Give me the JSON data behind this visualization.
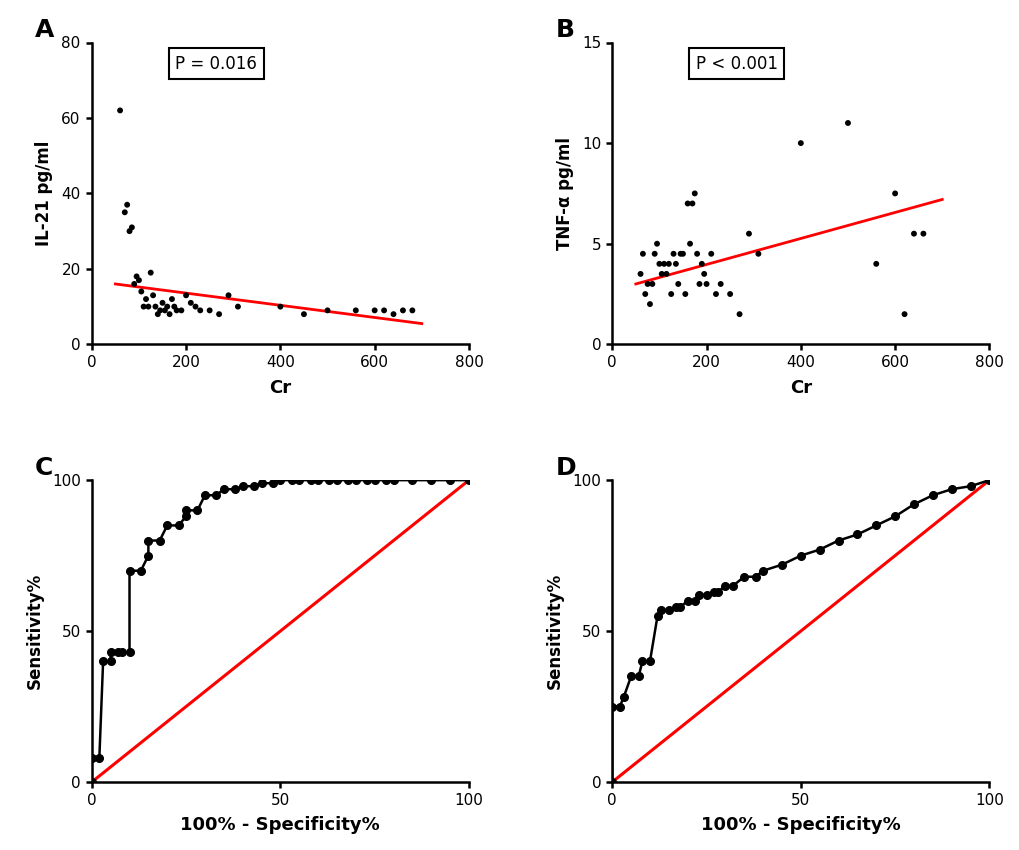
{
  "panel_A": {
    "scatter_x": [
      60,
      70,
      75,
      80,
      85,
      90,
      95,
      100,
      105,
      110,
      115,
      120,
      125,
      130,
      135,
      140,
      145,
      150,
      155,
      160,
      165,
      170,
      175,
      180,
      190,
      200,
      210,
      220,
      230,
      250,
      270,
      290,
      310,
      400,
      450,
      500,
      560,
      600,
      620,
      640,
      660,
      680
    ],
    "scatter_y": [
      62,
      35,
      37,
      30,
      31,
      16,
      18,
      17,
      14,
      10,
      12,
      10,
      19,
      13,
      10,
      8,
      9,
      11,
      9,
      10,
      8,
      12,
      10,
      9,
      9,
      13,
      11,
      10,
      9,
      9,
      8,
      13,
      10,
      10,
      8,
      9,
      9,
      9,
      9,
      8,
      9,
      9
    ],
    "trend_x": [
      50,
      700
    ],
    "trend_y": [
      16.0,
      5.5
    ],
    "xlabel": "Cr",
    "ylabel": "IL-21 pg/ml",
    "xlim": [
      0,
      800
    ],
    "ylim": [
      0,
      80
    ],
    "xticks": [
      0,
      200,
      400,
      600,
      800
    ],
    "yticks": [
      0,
      20,
      40,
      60,
      80
    ],
    "ptext": "P = 0.016",
    "label": "A"
  },
  "panel_B": {
    "scatter_x": [
      60,
      65,
      70,
      75,
      80,
      85,
      90,
      95,
      100,
      105,
      110,
      115,
      120,
      125,
      130,
      135,
      140,
      145,
      150,
      155,
      160,
      165,
      170,
      175,
      180,
      185,
      190,
      195,
      200,
      210,
      220,
      230,
      250,
      270,
      290,
      310,
      400,
      500,
      560,
      600,
      620,
      640,
      660
    ],
    "scatter_y": [
      3.5,
      4.5,
      2.5,
      3.0,
      2.0,
      3.0,
      4.5,
      5.0,
      4.0,
      3.5,
      4.0,
      3.5,
      4.0,
      2.5,
      4.5,
      4.0,
      3.0,
      4.5,
      4.5,
      2.5,
      7.0,
      5.0,
      7.0,
      7.5,
      4.5,
      3.0,
      4.0,
      3.5,
      3.0,
      4.5,
      2.5,
      3.0,
      2.5,
      1.5,
      5.5,
      4.5,
      10.0,
      11.0,
      4.0,
      7.5,
      1.5,
      5.5,
      5.5
    ],
    "trend_x": [
      50,
      700
    ],
    "trend_y": [
      3.0,
      7.2
    ],
    "xlabel": "Cr",
    "ylabel": "TNF-α pg/ml",
    "xlim": [
      0,
      800
    ],
    "ylim": [
      0,
      15
    ],
    "xticks": [
      0,
      200,
      400,
      600,
      800
    ],
    "yticks": [
      0,
      5,
      10,
      15
    ],
    "ptext": "P < 0.001",
    "label": "B"
  },
  "panel_C": {
    "fpr": [
      0,
      0,
      2,
      3,
      5,
      5,
      7,
      8,
      10,
      10,
      13,
      15,
      15,
      18,
      20,
      23,
      25,
      25,
      28,
      30,
      33,
      35,
      38,
      40,
      43,
      45,
      48,
      50,
      53,
      55,
      58,
      60,
      63,
      65,
      68,
      70,
      73,
      75,
      78,
      80,
      85,
      90,
      95,
      100
    ],
    "tpr": [
      0,
      8,
      8,
      40,
      40,
      43,
      43,
      43,
      43,
      70,
      70,
      75,
      80,
      80,
      85,
      85,
      88,
      90,
      90,
      95,
      95,
      97,
      97,
      98,
      98,
      99,
      99,
      100,
      100,
      100,
      100,
      100,
      100,
      100,
      100,
      100,
      100,
      100,
      100,
      100,
      100,
      100,
      100,
      100
    ],
    "xlabel": "100% - Specificity%",
    "ylabel": "Sensitivity%",
    "xlim": [
      0,
      100
    ],
    "ylim": [
      0,
      100
    ],
    "xticks": [
      0,
      50,
      100
    ],
    "yticks": [
      0,
      50,
      100
    ],
    "label": "C"
  },
  "panel_D": {
    "fpr": [
      0,
      0,
      2,
      3,
      5,
      7,
      8,
      10,
      12,
      13,
      15,
      17,
      18,
      20,
      22,
      23,
      25,
      27,
      28,
      30,
      32,
      35,
      38,
      40,
      45,
      50,
      55,
      60,
      65,
      70,
      75,
      80,
      85,
      90,
      95,
      100
    ],
    "tpr": [
      0,
      25,
      25,
      28,
      35,
      35,
      40,
      40,
      55,
      57,
      57,
      58,
      58,
      60,
      60,
      62,
      62,
      63,
      63,
      65,
      65,
      68,
      68,
      70,
      72,
      75,
      77,
      80,
      82,
      85,
      88,
      92,
      95,
      97,
      98,
      100
    ],
    "xlabel": "100% - Specificity%",
    "ylabel": "Sensitivity%",
    "xlim": [
      0,
      100
    ],
    "ylim": [
      0,
      100
    ],
    "xticks": [
      0,
      50,
      100
    ],
    "yticks": [
      0,
      50,
      100
    ],
    "label": "D"
  },
  "scatter_color": "#000000",
  "trend_color": "#FF0000",
  "roc_line_color": "#000000",
  "roc_diag_color": "#FF0000",
  "background_color": "#ffffff"
}
